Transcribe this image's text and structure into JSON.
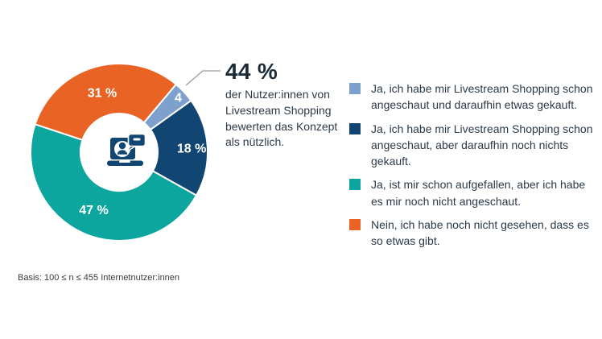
{
  "chart_data": {
    "type": "pie",
    "subtype": "donut",
    "title": "",
    "unit": "%",
    "start_angle_deg": 40,
    "legend_position": "right",
    "center_icon": "livestream-laptop-icon",
    "segments": [
      {
        "label": "4",
        "value": 4,
        "color": "#7EA0CD",
        "label_r": 0.91,
        "legend": "Ja, ich habe mir Livestream Shopping schon angeschaut und daraufhin etwas gekauft."
      },
      {
        "label": "18 %",
        "value": 18,
        "color": "#114672",
        "label_r": 0.82,
        "legend": "Ja, ich habe mir Livestream Shopping schon angeschaut, aber daraufhin noch nichts gekauft."
      },
      {
        "label": "47 %",
        "value": 47,
        "color": "#0CA69E",
        "label_r": 0.71,
        "legend": "Ja, ist mir schon aufgefallen, aber ich habe es mir noch nicht angeschaut."
      },
      {
        "label": "31 %",
        "value": 31,
        "color": "#E96324",
        "label_r": 0.7,
        "legend": "Nein, ich habe noch nicht gesehen, dass es so etwas gibt."
      }
    ],
    "annotation": {
      "headline": "44 %",
      "text": "der Nutzer:innen von Livestream Shopping bewerten das Konzept als nützlich."
    },
    "footnote": "Basis: 100 ≤ n ≤ 455 Internetnutzer:innen"
  }
}
